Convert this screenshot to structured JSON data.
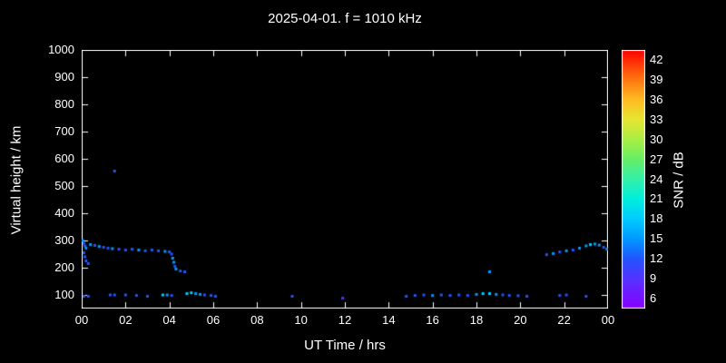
{
  "header": {
    "title": "2025-04-01. f = 1010 kHz"
  },
  "chart_data": {
    "type": "scatter",
    "title": "2025-04-01. f = 1010 kHz",
    "xlabel": "UT Time / hrs",
    "ylabel": "Virtual height / km",
    "xlim": [
      0,
      24
    ],
    "ylim": [
      50,
      1000
    ],
    "grid": false,
    "background": "#000000",
    "frame_color": "#ffffff",
    "x_tick_values": [
      0,
      2,
      4,
      6,
      8,
      10,
      12,
      14,
      16,
      18,
      20,
      22,
      24
    ],
    "x_tick_labels": [
      "00",
      "02",
      "04",
      "06",
      "08",
      "10",
      "12",
      "14",
      "16",
      "18",
      "20",
      "22",
      "00"
    ],
    "y_tick_values": [
      100,
      200,
      300,
      400,
      500,
      600,
      700,
      800,
      900,
      1000
    ],
    "y_tick_labels": [
      "100",
      "200",
      "300",
      "400",
      "500",
      "600",
      "700",
      "800",
      "900",
      "1000"
    ],
    "colorbar": {
      "label": "SNR / dB",
      "min": 4.5,
      "max": 43.5,
      "tick_values": [
        6,
        9,
        12,
        15,
        18,
        21,
        24,
        27,
        30,
        33,
        36,
        39,
        42
      ],
      "tick_labels": [
        "6",
        "9",
        "12",
        "15",
        "18",
        "21",
        "24",
        "27",
        "30",
        "33",
        "36",
        "39",
        "42"
      ],
      "stops": [
        {
          "v": 4.5,
          "color": "#8800ff"
        },
        {
          "v": 9,
          "color": "#5533ff"
        },
        {
          "v": 12,
          "color": "#2255ff"
        },
        {
          "v": 15,
          "color": "#0099ff"
        },
        {
          "v": 18,
          "color": "#00ccff"
        },
        {
          "v": 21,
          "color": "#00eedd"
        },
        {
          "v": 24,
          "color": "#33f0aa"
        },
        {
          "v": 27,
          "color": "#66ee66"
        },
        {
          "v": 30,
          "color": "#aaee44"
        },
        {
          "v": 33,
          "color": "#e6e632"
        },
        {
          "v": 36,
          "color": "#ffbb22"
        },
        {
          "v": 39,
          "color": "#ff7711"
        },
        {
          "v": 43.5,
          "color": "#ff0000"
        }
      ]
    },
    "points": [
      [
        0.05,
        300,
        15
      ],
      [
        0.1,
        290,
        12
      ],
      [
        0.15,
        280,
        12
      ],
      [
        0.2,
        272,
        15
      ],
      [
        0.1,
        255,
        12
      ],
      [
        0.15,
        240,
        12
      ],
      [
        0.2,
        225,
        12
      ],
      [
        0.3,
        215,
        12
      ],
      [
        0.4,
        285,
        15
      ],
      [
        0.6,
        282,
        12
      ],
      [
        0.8,
        278,
        15
      ],
      [
        1.0,
        275,
        12
      ],
      [
        1.2,
        272,
        12
      ],
      [
        1.4,
        270,
        15
      ],
      [
        1.7,
        268,
        12
      ],
      [
        2.0,
        265,
        12
      ],
      [
        2.3,
        268,
        12
      ],
      [
        2.6,
        265,
        15
      ],
      [
        2.9,
        262,
        12
      ],
      [
        3.2,
        265,
        12
      ],
      [
        3.5,
        262,
        12
      ],
      [
        3.8,
        260,
        15
      ],
      [
        4.0,
        258,
        12
      ],
      [
        4.1,
        250,
        12
      ],
      [
        4.15,
        235,
        15
      ],
      [
        4.2,
        220,
        15
      ],
      [
        4.25,
        205,
        12
      ],
      [
        4.3,
        195,
        15
      ],
      [
        4.5,
        188,
        12
      ],
      [
        4.7,
        185,
        12
      ],
      [
        1.5,
        555,
        12
      ],
      [
        0.1,
        95,
        12
      ],
      [
        0.3,
        95,
        12
      ],
      [
        1.3,
        100,
        12
      ],
      [
        1.5,
        100,
        12
      ],
      [
        2.0,
        100,
        12
      ],
      [
        2.5,
        98,
        12
      ],
      [
        3.0,
        95,
        12
      ],
      [
        3.7,
        100,
        18
      ],
      [
        3.9,
        100,
        15
      ],
      [
        4.1,
        98,
        12
      ],
      [
        4.8,
        105,
        18
      ],
      [
        5.0,
        108,
        18
      ],
      [
        5.2,
        105,
        15
      ],
      [
        5.4,
        102,
        15
      ],
      [
        5.6,
        100,
        12
      ],
      [
        5.9,
        98,
        12
      ],
      [
        6.1,
        95,
        12
      ],
      [
        9.6,
        95,
        12
      ],
      [
        11.9,
        88,
        9
      ],
      [
        14.8,
        95,
        12
      ],
      [
        15.2,
        98,
        12
      ],
      [
        15.6,
        100,
        12
      ],
      [
        16.0,
        98,
        15
      ],
      [
        16.4,
        100,
        12
      ],
      [
        16.8,
        98,
        12
      ],
      [
        17.2,
        100,
        12
      ],
      [
        17.6,
        98,
        12
      ],
      [
        18.0,
        102,
        15
      ],
      [
        18.3,
        105,
        18
      ],
      [
        18.6,
        105,
        18
      ],
      [
        18.9,
        102,
        15
      ],
      [
        19.2,
        100,
        12
      ],
      [
        19.5,
        98,
        12
      ],
      [
        19.9,
        97,
        12
      ],
      [
        20.3,
        95,
        12
      ],
      [
        21.8,
        98,
        12
      ],
      [
        22.1,
        100,
        12
      ],
      [
        23.0,
        95,
        12
      ],
      [
        18.6,
        185,
        15
      ],
      [
        21.2,
        248,
        12
      ],
      [
        21.5,
        252,
        15
      ],
      [
        21.8,
        258,
        12
      ],
      [
        22.1,
        262,
        15
      ],
      [
        22.4,
        265,
        12
      ],
      [
        22.7,
        272,
        15
      ],
      [
        23.0,
        280,
        15
      ],
      [
        23.2,
        285,
        18
      ],
      [
        23.4,
        287,
        15
      ],
      [
        23.6,
        283,
        15
      ],
      [
        23.8,
        275,
        12
      ],
      [
        23.95,
        268,
        15
      ]
    ]
  }
}
